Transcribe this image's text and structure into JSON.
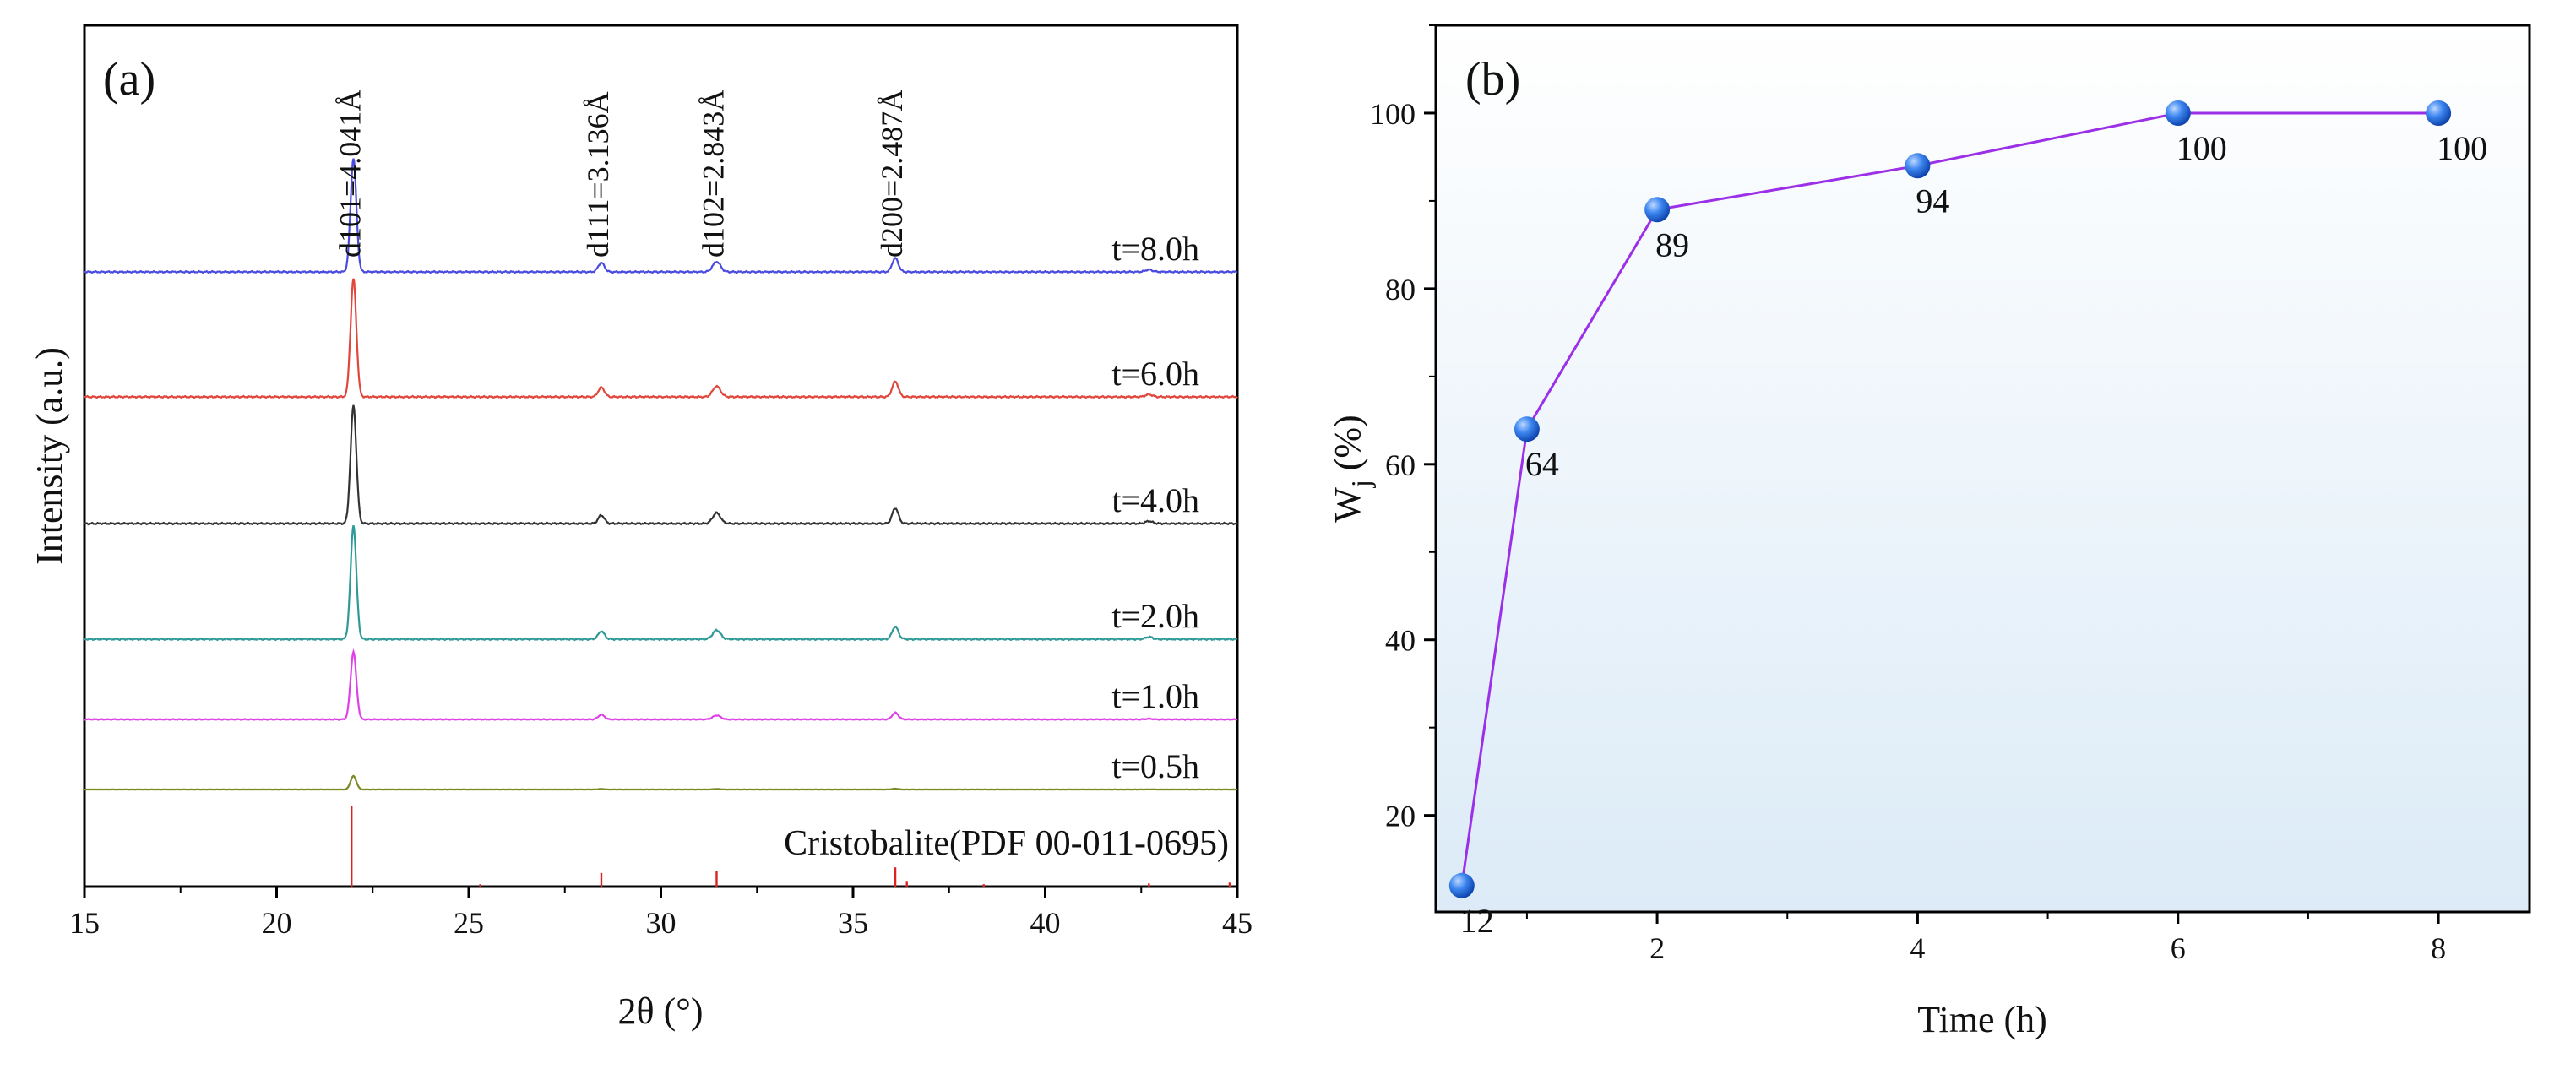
{
  "chart_data": [
    {
      "type": "line",
      "panel_label": "(a)",
      "xlabel": "2θ (°)",
      "ylabel": "Intensity (a.u.)",
      "xlim": [
        15,
        45
      ],
      "xticks": [
        15,
        20,
        25,
        30,
        35,
        40,
        45
      ],
      "grid": false,
      "colors": {
        "axis": "#000000"
      },
      "peak_labels": [
        {
          "text": "d101=4.041Å",
          "two_theta": 22.0
        },
        {
          "text": "d111=3.136Å",
          "two_theta": 28.45
        },
        {
          "text": "d102=2.843Å",
          "two_theta": 31.45
        },
        {
          "text": "d200=2.487Å",
          "two_theta": 36.1
        }
      ],
      "series": [
        {
          "name": "t=8.0h",
          "color": "#4a4ae0",
          "peaks": [
            [
              22.0,
              100
            ],
            [
              28.45,
              8
            ],
            [
              31.45,
              9
            ],
            [
              36.1,
              12
            ],
            [
              42.7,
              2
            ]
          ]
        },
        {
          "name": "t=6.0h",
          "color": "#e0463c",
          "peaks": [
            [
              22.0,
              100
            ],
            [
              28.45,
              8
            ],
            [
              31.45,
              9
            ],
            [
              36.1,
              13
            ],
            [
              42.7,
              2
            ]
          ]
        },
        {
          "name": "t=4.0h",
          "color": "#333333",
          "peaks": [
            [
              22.0,
              100
            ],
            [
              28.45,
              7
            ],
            [
              31.45,
              9
            ],
            [
              36.1,
              13
            ],
            [
              42.7,
              2
            ]
          ]
        },
        {
          "name": "t=2.0h",
          "color": "#2e9a97",
          "peaks": [
            [
              22.0,
              100
            ],
            [
              28.45,
              7
            ],
            [
              31.45,
              8
            ],
            [
              36.1,
              11
            ],
            [
              42.7,
              2
            ]
          ]
        },
        {
          "name": "t=1.0h",
          "color": "#e040e8",
          "peaks": [
            [
              22.0,
              100
            ],
            [
              28.45,
              7
            ],
            [
              31.45,
              6
            ],
            [
              36.1,
              10
            ],
            [
              42.7,
              1
            ]
          ]
        },
        {
          "name": "t=0.5h",
          "color": "#7a8a22",
          "peaks": [
            [
              22.0,
              100
            ],
            [
              28.45,
              4
            ],
            [
              31.45,
              4
            ],
            [
              36.1,
              6
            ],
            [
              42.7,
              1
            ]
          ]
        }
      ],
      "reference": {
        "name": "Cristobalite(PDF 00-011-0695)",
        "color": "#e02020",
        "lines": [
          [
            21.95,
            100
          ],
          [
            25.3,
            3
          ],
          [
            28.45,
            17
          ],
          [
            31.45,
            19
          ],
          [
            36.1,
            24
          ],
          [
            36.4,
            7
          ],
          [
            38.4,
            3
          ],
          [
            42.7,
            4
          ],
          [
            44.8,
            5
          ]
        ]
      }
    },
    {
      "type": "line",
      "panel_label": "(b)",
      "xlabel": "Time (h)",
      "ylabel_main": "W",
      "ylabel_sub": "j",
      "ylabel_unit": " (%)",
      "xlim": [
        0.3,
        8.7
      ],
      "ylim": [
        9,
        110
      ],
      "xticks": [
        2,
        4,
        6,
        8
      ],
      "yticks": [
        20,
        40,
        60,
        80,
        100
      ],
      "grid": false,
      "colors": {
        "line": "#9b30e8",
        "marker": "#1560d8",
        "marker_highlight": "#bcd8ff",
        "background_top": "#ffffff",
        "background_bottom": "#dcebf7"
      },
      "x": [
        0.5,
        1,
        2,
        4,
        6,
        8
      ],
      "y": [
        12,
        64,
        89,
        94,
        100,
        100
      ],
      "data_labels": [
        "12",
        "64",
        "89",
        "94",
        "100",
        "100"
      ]
    }
  ]
}
